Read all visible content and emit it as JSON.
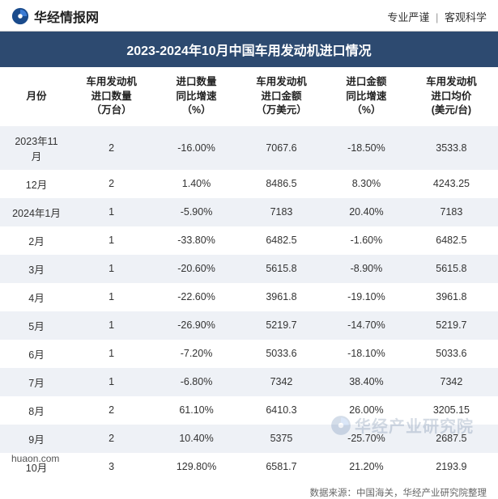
{
  "brand": {
    "name": "华经情报网",
    "icon_bg": "#1a4b8c"
  },
  "tagline": {
    "left": "专业严谨",
    "right": "客观科学"
  },
  "title": "2023-2024年10月中国车用发动机进口情况",
  "columns": [
    "月份",
    "车用发动机\n进口数量\n（万台）",
    "进口数量\n同比增速\n（%）",
    "车用发动机\n进口金额\n（万美元）",
    "进口金额\n同比增速\n（%）",
    "车用发动机\n进口均价\n(美元/台)"
  ],
  "rows": [
    {
      "month": "2023年11月",
      "qty": "2",
      "qty_yoy": "-16.00%",
      "amt": "7067.6",
      "amt_yoy": "-18.50%",
      "price": "3533.8"
    },
    {
      "month": "12月",
      "qty": "2",
      "qty_yoy": "1.40%",
      "amt": "8486.5",
      "amt_yoy": "8.30%",
      "price": "4243.25"
    },
    {
      "month": "2024年1月",
      "qty": "1",
      "qty_yoy": "-5.90%",
      "amt": "7183",
      "amt_yoy": "20.40%",
      "price": "7183"
    },
    {
      "month": "2月",
      "qty": "1",
      "qty_yoy": "-33.80%",
      "amt": "6482.5",
      "amt_yoy": "-1.60%",
      "price": "6482.5"
    },
    {
      "month": "3月",
      "qty": "1",
      "qty_yoy": "-20.60%",
      "amt": "5615.8",
      "amt_yoy": "-8.90%",
      "price": "5615.8"
    },
    {
      "month": "4月",
      "qty": "1",
      "qty_yoy": "-22.60%",
      "amt": "3961.8",
      "amt_yoy": "-19.10%",
      "price": "3961.8"
    },
    {
      "month": "5月",
      "qty": "1",
      "qty_yoy": "-26.90%",
      "amt": "5219.7",
      "amt_yoy": "-14.70%",
      "price": "5219.7"
    },
    {
      "month": "6月",
      "qty": "1",
      "qty_yoy": "-7.20%",
      "amt": "5033.6",
      "amt_yoy": "-18.10%",
      "price": "5033.6"
    },
    {
      "month": "7月",
      "qty": "1",
      "qty_yoy": "-6.80%",
      "amt": "7342",
      "amt_yoy": "38.40%",
      "price": "7342"
    },
    {
      "month": "8月",
      "qty": "2",
      "qty_yoy": "61.10%",
      "amt": "6410.3",
      "amt_yoy": "26.00%",
      "price": "3205.15"
    },
    {
      "month": "9月",
      "qty": "2",
      "qty_yoy": "10.40%",
      "amt": "5375",
      "amt_yoy": "-25.70%",
      "price": "2687.5"
    },
    {
      "month": "10月",
      "qty": "3",
      "qty_yoy": "129.80%",
      "amt": "6581.7",
      "amt_yoy": "21.20%",
      "price": "2193.9"
    }
  ],
  "source": "数据来源：中国海关，华经产业研究院整理",
  "site": "huaon.com",
  "watermark": "华经产业研究院",
  "style": {
    "neg_color": "#3366cc",
    "pos_color": "#333333",
    "title_bg": "#2d4a70",
    "row_alt_bg": "#eef1f6",
    "font_size_body": 12.5,
    "font_size_title": 16
  }
}
